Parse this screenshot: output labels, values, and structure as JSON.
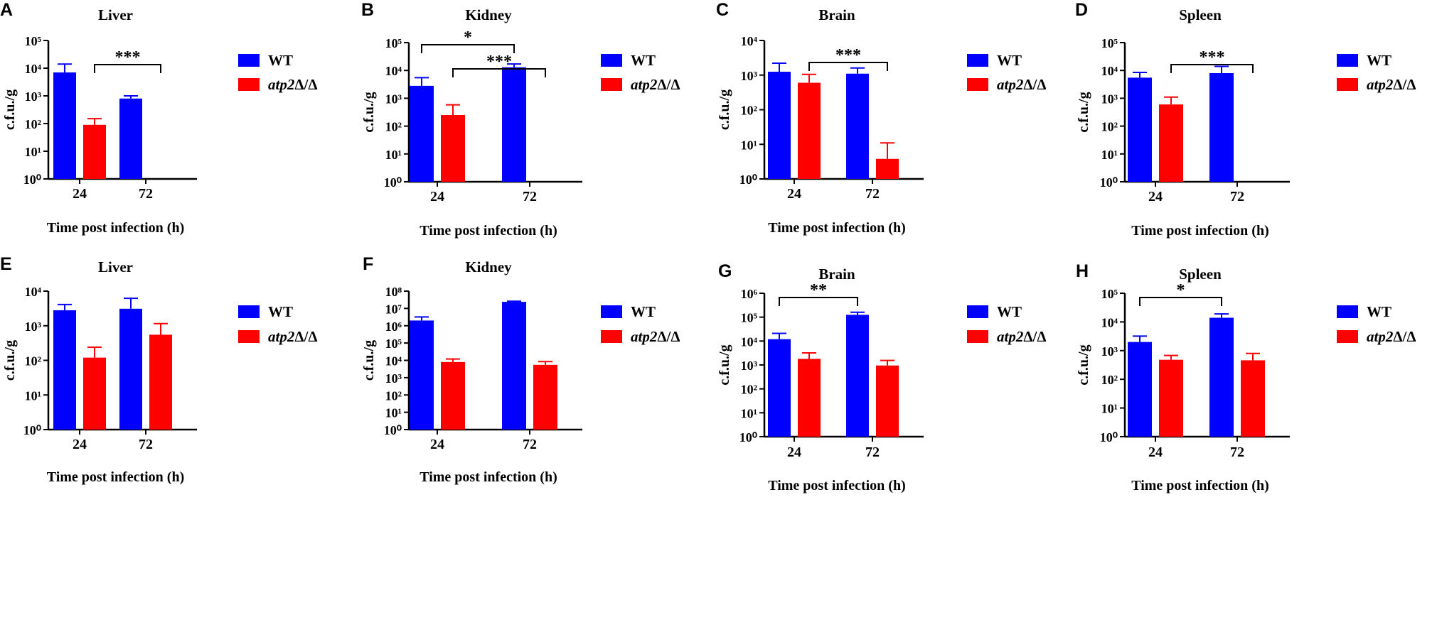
{
  "figure": {
    "xlabel": "Time post infection (h)",
    "ylabel": "c.f.u./g",
    "legend": [
      {
        "label": "WT",
        "italic": "",
        "rest": "",
        "color": "#0000ff"
      },
      {
        "label": "",
        "italic": "atp2",
        "rest": "Δ/Δ",
        "color": "#ff0000"
      }
    ],
    "colors": {
      "wt": "#0000ff",
      "mutant": "#ff0000"
    }
  },
  "chart_data": [
    {
      "panel": "A",
      "type": "bar",
      "title": "Liver",
      "scale": "log10",
      "ylim": [
        1,
        100000
      ],
      "categories": [
        "24",
        "72"
      ],
      "series": [
        {
          "name": "WT",
          "values": [
            7000,
            800
          ],
          "errors": [
            14000,
            1000
          ]
        },
        {
          "name": "atp2Δ/Δ",
          "values": [
            90,
            null
          ],
          "errors": [
            150,
            null
          ]
        }
      ],
      "significance": [
        {
          "from": [
            0,
            1
          ],
          "to": [
            1,
            1
          ],
          "label": "***"
        }
      ]
    },
    {
      "panel": "B",
      "type": "bar",
      "title": "Kidney",
      "scale": "log10",
      "ylim": [
        1,
        100000
      ],
      "categories": [
        "24",
        "72"
      ],
      "series": [
        {
          "name": "WT",
          "values": [
            2800,
            13000
          ],
          "errors": [
            5500,
            17000
          ]
        },
        {
          "name": "atp2Δ/Δ",
          "values": [
            250,
            null
          ],
          "errors": [
            580,
            null
          ]
        }
      ],
      "significance": [
        {
          "from": [
            0,
            0
          ],
          "to": [
            1,
            0
          ],
          "label": "*"
        },
        {
          "from": [
            0,
            1
          ],
          "to": [
            1,
            1
          ],
          "label": "***"
        }
      ]
    },
    {
      "panel": "C",
      "type": "bar",
      "title": "Brain",
      "scale": "log10",
      "ylim": [
        1,
        10000
      ],
      "categories": [
        "24",
        "72"
      ],
      "series": [
        {
          "name": "WT",
          "values": [
            1250,
            1100
          ],
          "errors": [
            2200,
            1600
          ]
        },
        {
          "name": "atp2Δ/Δ",
          "values": [
            600,
            3.8
          ],
          "errors": [
            1050,
            11
          ]
        }
      ],
      "significance": [
        {
          "from": [
            0,
            1
          ],
          "to": [
            1,
            1
          ],
          "label": "***"
        }
      ]
    },
    {
      "panel": "D",
      "type": "bar",
      "title": "Spleen",
      "scale": "log10",
      "ylim": [
        1,
        100000
      ],
      "categories": [
        "24",
        "72"
      ],
      "series": [
        {
          "name": "WT",
          "values": [
            5500,
            8000
          ],
          "errors": [
            8500,
            14000
          ]
        },
        {
          "name": "atp2Δ/Δ",
          "values": [
            600,
            null
          ],
          "errors": [
            1100,
            null
          ]
        }
      ],
      "significance": [
        {
          "from": [
            0,
            1
          ],
          "to": [
            1,
            1
          ],
          "label": "***"
        }
      ]
    },
    {
      "panel": "E",
      "type": "bar",
      "title": "Liver",
      "scale": "log10",
      "ylim": [
        1,
        10000
      ],
      "categories": [
        "24",
        "72"
      ],
      "series": [
        {
          "name": "WT",
          "values": [
            2800,
            3100
          ],
          "errors": [
            4100,
            6200
          ]
        },
        {
          "name": "atp2Δ/Δ",
          "values": [
            120,
            550
          ],
          "errors": [
            240,
            1150
          ]
        }
      ],
      "significance": []
    },
    {
      "panel": "F",
      "type": "bar",
      "title": "Kidney",
      "scale": "log10",
      "ylim": [
        1,
        100000000
      ],
      "categories": [
        "24",
        "72"
      ],
      "series": [
        {
          "name": "WT",
          "values": [
            2000000,
            24000000
          ],
          "errors": [
            3200000,
            26000000
          ]
        },
        {
          "name": "atp2Δ/Δ",
          "values": [
            8000,
            5500
          ],
          "errors": [
            12000,
            8500
          ]
        }
      ],
      "significance": []
    },
    {
      "panel": "G",
      "type": "bar",
      "title": "Brain",
      "scale": "log10",
      "ylim": [
        1,
        1000000
      ],
      "categories": [
        "24",
        "72"
      ],
      "series": [
        {
          "name": "WT",
          "values": [
            12000,
            125000
          ],
          "errors": [
            21000,
            160000
          ]
        },
        {
          "name": "atp2Δ/Δ",
          "values": [
            1800,
            950
          ],
          "errors": [
            3200,
            1550
          ]
        }
      ],
      "significance": [
        {
          "from": [
            0,
            0
          ],
          "to": [
            1,
            0
          ],
          "label": "**"
        }
      ]
    },
    {
      "panel": "H",
      "type": "bar",
      "title": "Spleen",
      "scale": "log10",
      "ylim": [
        1,
        100000
      ],
      "categories": [
        "24",
        "72"
      ],
      "series": [
        {
          "name": "WT",
          "values": [
            2000,
            14000
          ],
          "errors": [
            3200,
            19000
          ]
        },
        {
          "name": "atp2Δ/Δ",
          "values": [
            480,
            460
          ],
          "errors": [
            680,
            800
          ]
        }
      ],
      "significance": [
        {
          "from": [
            0,
            0
          ],
          "to": [
            1,
            0
          ],
          "label": "*"
        }
      ]
    }
  ]
}
